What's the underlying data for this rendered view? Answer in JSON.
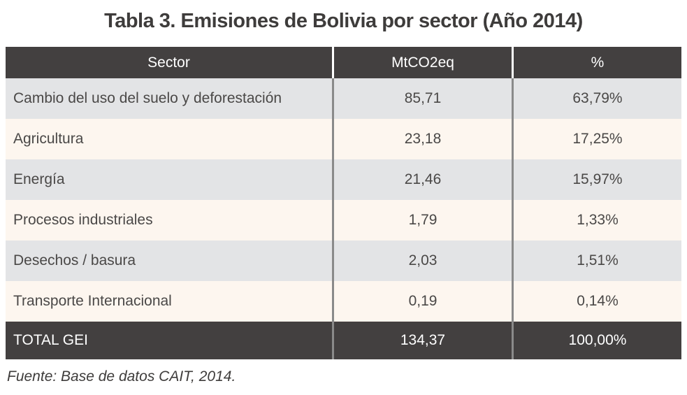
{
  "title": "Tabla 3. Emisiones de Bolivia por sector (Año 2014)",
  "footer": "Fuente: Base de datos CAIT, 2014.",
  "colors": {
    "header_bg": "#434040",
    "row_gray": "#e3e4e6",
    "row_cream": "#fdf6ef",
    "divider_body": "#8a8a8a",
    "divider_header": "#ffffff",
    "body_text": "#4a4847",
    "header_text": "#ffffff"
  },
  "chart_data": {
    "type": "table",
    "title": "Tabla 3. Emisiones de Bolivia por sector (Año 2014)",
    "columns": [
      "Sector",
      "MtCO2eq",
      "%"
    ],
    "rows": [
      {
        "sector": "Cambio del uso del suelo y deforestación",
        "mtco2eq": "85,71",
        "pct": "63,79%"
      },
      {
        "sector": "Agricultura",
        "mtco2eq": "23,18",
        "pct": "17,25%"
      },
      {
        "sector": "Energía",
        "mtco2eq": "21,46",
        "pct": "15,97%"
      },
      {
        "sector": "Procesos industriales",
        "mtco2eq": "1,79",
        "pct": "1,33%"
      },
      {
        "sector": "Desechos / basura",
        "mtco2eq": "2,03",
        "pct": "1,51%"
      },
      {
        "sector": "Transporte Internacional",
        "mtco2eq": "0,19",
        "pct": "0,14%"
      }
    ],
    "total": {
      "sector": "TOTAL GEI",
      "mtco2eq": "134,37",
      "pct": "100,00%"
    },
    "source": "Fuente: Base de datos CAIT, 2014."
  }
}
